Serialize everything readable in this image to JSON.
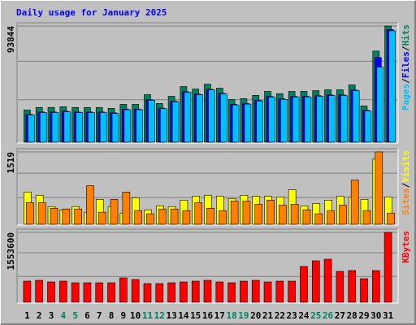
{
  "title": "Daily usage for January 2025",
  "legend_separator": "/",
  "chart_data": [
    {
      "type": "bar",
      "ylim": [
        0,
        93844
      ],
      "yticks": [
        93844
      ],
      "series": [
        {
          "name": "Hits",
          "color": "#00805c",
          "values": [
            26500,
            28500,
            28500,
            29100,
            28500,
            28500,
            28500,
            27800,
            31000,
            31000,
            38800,
            31700,
            37500,
            45300,
            43300,
            47200,
            44000,
            34900,
            35600,
            38200,
            41400,
            39500,
            41400,
            41400,
            42000,
            42700,
            42700,
            46600,
            29800,
            73700,
            93844
          ]
        },
        {
          "name": "Files",
          "color": "#0000ff",
          "values": [
            23000,
            24900,
            24900,
            25500,
            24900,
            24900,
            24900,
            24200,
            27200,
            27200,
            34800,
            28000,
            33600,
            41200,
            39200,
            43100,
            39900,
            31000,
            31700,
            34300,
            37400,
            35500,
            37400,
            37400,
            38000,
            38600,
            38600,
            42500,
            26200,
            68600,
            91000
          ]
        },
        {
          "name": "Pages",
          "color": "#00c0ff",
          "values": [
            22500,
            24400,
            24400,
            25000,
            24400,
            24400,
            24400,
            23700,
            26700,
            26700,
            34300,
            27500,
            33100,
            40700,
            38700,
            42600,
            39400,
            30500,
            31200,
            33800,
            36900,
            35000,
            36900,
            36900,
            37500,
            38100,
            38100,
            42000,
            25700,
            60800,
            90000
          ]
        }
      ]
    },
    {
      "type": "bar",
      "ylim": [
        0,
        1519
      ],
      "yticks": [
        1519
      ],
      "series": [
        {
          "name": "Visits",
          "color": "#ffff00",
          "values": [
            685,
            620,
            384,
            317,
            384,
            267,
            534,
            384,
            250,
            567,
            317,
            400,
            384,
            517,
            600,
            620,
            600,
            550,
            620,
            600,
            600,
            584,
            734,
            400,
            450,
            517,
            600,
            584,
            534,
            1370,
            584
          ]
        },
        {
          "name": "Sites",
          "color": "#ff8000",
          "values": [
            467,
            467,
            350,
            334,
            334,
            818,
            267,
            534,
            685,
            300,
            234,
            334,
            334,
            300,
            467,
            350,
            300,
            500,
            500,
            434,
            517,
            417,
            434,
            317,
            234,
            300,
            417,
            935,
            300,
            1519,
            250
          ]
        }
      ]
    },
    {
      "type": "bar",
      "ylim": [
        0,
        1553600
      ],
      "yticks": [
        1553600
      ],
      "categories": [
        "1",
        "2",
        "3",
        "4",
        "5",
        "6",
        "7",
        "8",
        "9",
        "10",
        "11",
        "12",
        "13",
        "14",
        "15",
        "16",
        "17",
        "18",
        "19",
        "20",
        "21",
        "22",
        "23",
        "24",
        "25",
        "26",
        "27",
        "28",
        "29",
        "30",
        "31"
      ],
      "category_colors": [
        "#000000",
        "#000000",
        "#000000",
        "#00805c",
        "#00805c",
        "#000000",
        "#000000",
        "#000000",
        "#000000",
        "#000000",
        "#00805c",
        "#00805c",
        "#000000",
        "#000000",
        "#000000",
        "#000000",
        "#000000",
        "#00805c",
        "#00805c",
        "#000000",
        "#000000",
        "#000000",
        "#000000",
        "#000000",
        "#00805c",
        "#00805c",
        "#000000",
        "#000000",
        "#000000",
        "#000000",
        "#000000"
      ],
      "series": [
        {
          "name": "KBytes",
          "color": "#ff0000",
          "values": [
            482000,
            500000,
            464000,
            482000,
            446000,
            446000,
            446000,
            446000,
            554000,
            518000,
            428000,
            428000,
            446000,
            464000,
            482000,
            500000,
            464000,
            446000,
            482000,
            500000,
            464000,
            482000,
            482000,
            804000,
            929000,
            964000,
            696000,
            714000,
            536000,
            714000,
            1553600
          ]
        }
      ]
    }
  ]
}
